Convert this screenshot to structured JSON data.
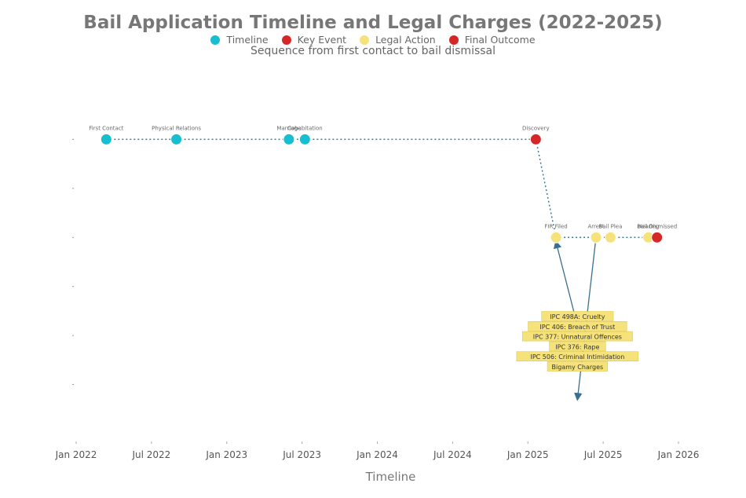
{
  "chart_data": {
    "type": "scatter",
    "title": "Bail Application Timeline and Legal Charges (2022-2025)",
    "subtitle": "Sequence from first contact to bail dismissal",
    "xlabel": "Timeline",
    "ylabel": "",
    "x_ticks": [
      "Jan 2022",
      "Jul 2022",
      "Jan 2023",
      "Jul 2023",
      "Jan 2024",
      "Jul 2024",
      "Jan 2025",
      "Jul 2025",
      "Jan 2026"
    ],
    "xlim": [
      "2022-01-01",
      "2026-01-01"
    ],
    "ylim": [
      -1,
      6
    ],
    "grid": false,
    "legend_position": "top-center",
    "legend": [
      {
        "name": "Timeline",
        "color": "#17becf"
      },
      {
        "name": "Key Event",
        "color": "#d62728"
      },
      {
        "name": "Legal Action",
        "color": "#f5e27a"
      },
      {
        "name": "Final Outcome",
        "color": "#d62728"
      }
    ],
    "series": [
      {
        "name": "Timeline",
        "color": "#17becf",
        "points": [
          {
            "x": "2022-03-15",
            "y": 5,
            "label": "First Contact"
          },
          {
            "x": "2022-09-01",
            "y": 5,
            "label": "Physical Relations"
          },
          {
            "x": "2023-06-01",
            "y": 5,
            "label": "Marriage"
          },
          {
            "x": "2023-07-10",
            "y": 5,
            "label": "Cohabitation"
          }
        ]
      },
      {
        "name": "Key Event",
        "color": "#d62728",
        "points": [
          {
            "x": "2025-01-20",
            "y": 5,
            "label": "Discovery"
          }
        ]
      },
      {
        "name": "Legal Action",
        "color": "#f5e27a",
        "points": [
          {
            "x": "2025-03-10",
            "y": 3,
            "label": "FIR Filed"
          },
          {
            "x": "2025-06-15",
            "y": 3,
            "label": "Arrest"
          },
          {
            "x": "2025-07-20",
            "y": 3,
            "label": "Bail Plea"
          },
          {
            "x": "2025-10-20",
            "y": 3,
            "label": "Hearing"
          }
        ]
      },
      {
        "name": "Final Outcome",
        "color": "#d62728",
        "points": [
          {
            "x": "2025-11-10",
            "y": 3,
            "label": "Bail Dismissed"
          }
        ]
      }
    ],
    "charges": {
      "items": [
        "IPC 498A: Cruelty",
        "IPC 406: Breach of Trust",
        "IPC 377: Unnatural Offences",
        "IPC 376: Rape",
        "IPC 506: Criminal Intimidation",
        "Bigamy Charges"
      ],
      "color": "#f5e27a",
      "anchor": {
        "x": "2025-05-01",
        "y": -0.2
      }
    },
    "annotations": [
      {
        "from": {
          "x": "2025-05-01",
          "y": 1.2
        },
        "to": {
          "x": "2025-03-10",
          "y": 3
        }
      },
      {
        "from": {
          "x": "2025-06-15",
          "y": 3
        },
        "to": {
          "x": "2025-05-01",
          "y": -0.2
        }
      }
    ]
  }
}
